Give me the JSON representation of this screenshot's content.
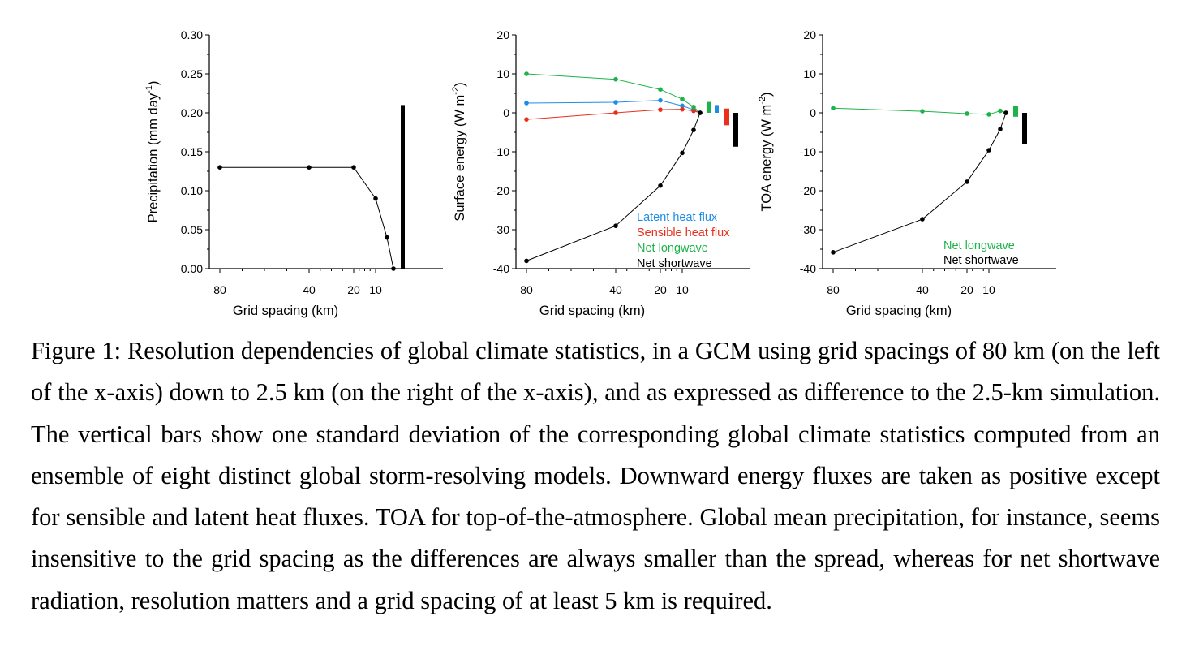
{
  "chart_data": [
    {
      "type": "line",
      "title": "",
      "xlabel": "Grid spacing (km)",
      "ylabel_main": "Precipitation (mm day",
      "ylabel_sup": "-1",
      "ylabel_tail": ")",
      "ylim": [
        0,
        0.3
      ],
      "yticks": [
        0,
        0.05,
        0.1,
        0.15,
        0.2,
        0.25,
        0.3
      ],
      "ytick_labels": [
        "0.00",
        "0.05",
        "0.10",
        "0.15",
        "0.20",
        "0.25",
        "0.30"
      ],
      "xticks": [
        80,
        40,
        20,
        10
      ],
      "xtick_labels": [
        "80",
        "40",
        "20",
        "10"
      ],
      "x": [
        80,
        40,
        20,
        10,
        5,
        2.5
      ],
      "series": [
        {
          "color": "#000000",
          "values": [
            0.13,
            0.13,
            0.13,
            0.09,
            0.04,
            0.0
          ]
        }
      ],
      "bars": [
        {
          "color": "#000000",
          "low": 0,
          "high": 0.21
        }
      ],
      "legend": []
    },
    {
      "type": "line",
      "title": "",
      "xlabel": "Grid spacing (km)",
      "ylabel_main": "Surface energy (W m",
      "ylabel_sup": "-2",
      "ylabel_tail": ")",
      "ylim": [
        -40,
        20
      ],
      "yticks": [
        -40,
        -30,
        -20,
        -10,
        0,
        10,
        20
      ],
      "ytick_labels": [
        "-40",
        "-30",
        "-20",
        "-10",
        "0",
        "10",
        "20"
      ],
      "xticks": [
        80,
        40,
        20,
        10
      ],
      "xtick_labels": [
        "80",
        "40",
        "20",
        "10"
      ],
      "x": [
        80,
        40,
        20,
        10,
        5,
        2.5
      ],
      "series": [
        {
          "name": "Latent heat flux",
          "color": "#1f8ce6",
          "values": [
            2.5,
            2.7,
            3.2,
            1.8,
            0.8,
            0.0
          ]
        },
        {
          "name": "Sensible heat flux",
          "color": "#e8301c",
          "values": [
            -1.7,
            0.0,
            0.8,
            0.9,
            0.5,
            0.0
          ]
        },
        {
          "name": "Net longwave",
          "color": "#1db34a",
          "values": [
            10.0,
            8.6,
            6.0,
            3.5,
            1.5,
            0.0
          ]
        },
        {
          "name": "Net shortwave",
          "color": "#000000",
          "values": [
            -38.0,
            -29.0,
            -18.7,
            -10.3,
            -4.4,
            0.0
          ]
        }
      ],
      "bars": [
        {
          "color": "#1db34a",
          "low": 0,
          "high": 2.8
        },
        {
          "color": "#1f8ce6",
          "low": 0,
          "high": 2.0
        },
        {
          "color": "#e8301c",
          "low": -3.2,
          "high": 1.1
        },
        {
          "color": "#000000",
          "low": -8.7,
          "high": 0
        }
      ],
      "legend": [
        "Latent heat flux",
        "Sensible heat flux",
        "Net longwave",
        "Net shortwave"
      ]
    },
    {
      "type": "line",
      "title": "",
      "xlabel": "Grid spacing (km)",
      "ylabel_main": "TOA energy (W m",
      "ylabel_sup": "-2",
      "ylabel_tail": ")",
      "ylim": [
        -40,
        20
      ],
      "yticks": [
        -40,
        -30,
        -20,
        -10,
        0,
        10,
        20
      ],
      "ytick_labels": [
        "-40",
        "-30",
        "-20",
        "-10",
        "0",
        "10",
        "20"
      ],
      "xticks": [
        80,
        40,
        20,
        10
      ],
      "xtick_labels": [
        "80",
        "40",
        "20",
        "10"
      ],
      "x": [
        80,
        40,
        20,
        10,
        5,
        2.5
      ],
      "series": [
        {
          "name": "Net longwave",
          "color": "#1db34a",
          "values": [
            1.2,
            0.4,
            -0.2,
            -0.4,
            0.5,
            0.0
          ]
        },
        {
          "name": "Net shortwave",
          "color": "#000000",
          "values": [
            -35.8,
            -27.3,
            -17.7,
            -9.6,
            -4.2,
            0.0
          ]
        }
      ],
      "bars": [
        {
          "color": "#1db34a",
          "low": -1.0,
          "high": 1.8
        },
        {
          "color": "#000000",
          "low": -8.0,
          "high": 0
        }
      ],
      "legend": [
        "Net longwave",
        "Net shortwave"
      ]
    }
  ],
  "caption": "Figure 1: Resolution dependencies of global climate statistics, in a GCM using grid spacings of 80 km (on the left of the x-axis) down to 2.5 km (on the right of the x-axis), and as expressed as difference to the 2.5-km simulation. The vertical bars show one standard deviation of the corresponding global climate statistics computed from an ensemble of eight distinct global storm-resolving models. Downward energy fluxes are taken as positive except for sensible and latent heat fluxes. TOA for top-of-the-atmosphere. Global mean precipitation, for instance, seems insensitive to the grid spacing as the differences are always smaller than the spread, whereas for net shortwave radiation, resolution matters and a grid spacing of at least 5 km is required."
}
